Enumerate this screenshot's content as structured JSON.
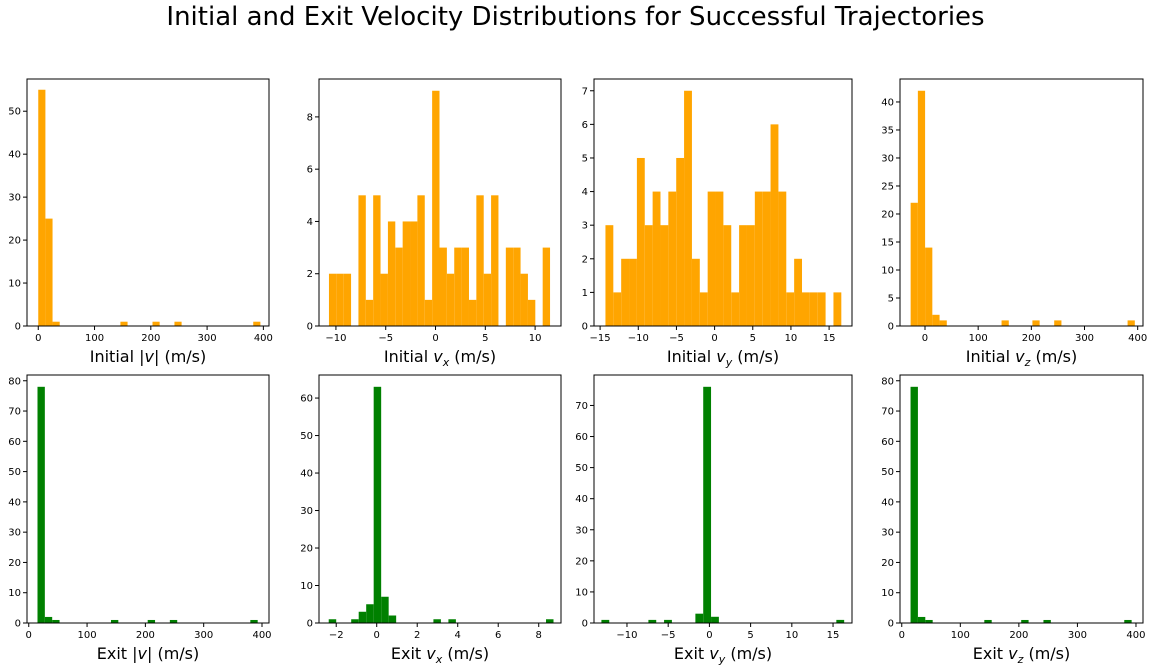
{
  "title": "Initial and Exit Velocity Distributions for Successful Trajectories",
  "colors": {
    "initial": "#ffa500",
    "exit": "#008000"
  },
  "chart_data": [
    {
      "type": "bar",
      "name": "initial-speed",
      "xlabel": {
        "pre": "Initial |",
        "var": "v",
        "sub": "",
        "post": "| (m/s)"
      },
      "xlim": [
        -20,
        410
      ],
      "ylim": [
        0,
        57.5
      ],
      "xticks": [
        0,
        100,
        200,
        300,
        400
      ],
      "yticks": [
        0,
        10,
        20,
        30,
        40,
        50
      ],
      "bin_width": 12.7,
      "color": "initial",
      "bins": [
        [
          0,
          55
        ],
        [
          12.7,
          25
        ],
        [
          25.4,
          1
        ],
        [
          146,
          1
        ],
        [
          203,
          1
        ],
        [
          242,
          1
        ],
        [
          382,
          1
        ]
      ]
    },
    {
      "type": "bar",
      "name": "initial-vx",
      "xlabel": {
        "pre": "Initial ",
        "var": "v",
        "sub": "x",
        "post": " (m/s)"
      },
      "xlim": [
        -11.7,
        12.6
      ],
      "ylim": [
        0,
        9.45
      ],
      "xticks": [
        -10,
        -5,
        0,
        5,
        10
      ],
      "yticks": [
        0,
        2,
        4,
        6,
        8
      ],
      "bin_width": 0.74,
      "color": "initial",
      "bins": [
        [
          -10.7,
          2
        ],
        [
          -9.96,
          2
        ],
        [
          -9.22,
          2
        ],
        [
          -7.74,
          5
        ],
        [
          -7.0,
          1
        ],
        [
          -6.26,
          5
        ],
        [
          -5.52,
          2
        ],
        [
          -4.78,
          4
        ],
        [
          -4.04,
          3
        ],
        [
          -3.3,
          4
        ],
        [
          -2.56,
          4
        ],
        [
          -1.82,
          5
        ],
        [
          -1.08,
          1
        ],
        [
          -0.34,
          9
        ],
        [
          0.4,
          3
        ],
        [
          1.14,
          2
        ],
        [
          1.88,
          3
        ],
        [
          2.62,
          3
        ],
        [
          3.36,
          1
        ],
        [
          4.1,
          5
        ],
        [
          4.84,
          2
        ],
        [
          5.58,
          5
        ],
        [
          6.32,
          0
        ],
        [
          7.06,
          3
        ],
        [
          7.8,
          3
        ],
        [
          8.54,
          2
        ],
        [
          9.28,
          1
        ],
        [
          10.76,
          3
        ]
      ]
    },
    {
      "type": "bar",
      "name": "initial-vy",
      "xlabel": {
        "pre": "Initial ",
        "var": "v",
        "sub": "y",
        "post": " (m/s)"
      },
      "xlim": [
        -15.8,
        18.0
      ],
      "ylim": [
        0,
        7.35
      ],
      "xticks": [
        -15,
        -10,
        -5,
        0,
        5,
        10,
        15
      ],
      "yticks": [
        0,
        1,
        2,
        3,
        4,
        5,
        6,
        7
      ],
      "bin_width": 1.03,
      "color": "initial",
      "bins": [
        [
          -14.3,
          3
        ],
        [
          -13.27,
          1
        ],
        [
          -12.24,
          2
        ],
        [
          -11.21,
          2
        ],
        [
          -10.18,
          5
        ],
        [
          -9.15,
          3
        ],
        [
          -8.12,
          4
        ],
        [
          -7.09,
          3
        ],
        [
          -6.06,
          4
        ],
        [
          -5.03,
          5
        ],
        [
          -4.0,
          7
        ],
        [
          -2.97,
          2
        ],
        [
          -1.94,
          1
        ],
        [
          -0.91,
          4
        ],
        [
          0.12,
          4
        ],
        [
          1.15,
          3
        ],
        [
          2.18,
          1
        ],
        [
          3.21,
          3
        ],
        [
          4.24,
          3
        ],
        [
          5.27,
          4
        ],
        [
          6.3,
          4
        ],
        [
          7.33,
          6
        ],
        [
          8.36,
          4
        ],
        [
          9.39,
          1
        ],
        [
          10.42,
          2
        ],
        [
          11.45,
          1
        ],
        [
          12.48,
          1
        ],
        [
          13.51,
          1
        ],
        [
          15.57,
          1
        ]
      ]
    },
    {
      "type": "bar",
      "name": "initial-vz",
      "xlabel": {
        "pre": "Initial ",
        "var": "v",
        "sub": "z",
        "post": " (m/s)"
      },
      "xlim": [
        -47,
        410
      ],
      "ylim": [
        0,
        44.1
      ],
      "xticks": [
        0,
        100,
        200,
        300,
        400
      ],
      "yticks": [
        0,
        5,
        10,
        15,
        20,
        25,
        30,
        35,
        40
      ],
      "bin_width": 13.6,
      "color": "initial",
      "bins": [
        [
          -27,
          22
        ],
        [
          -13.4,
          42
        ],
        [
          0.2,
          14
        ],
        [
          13.8,
          2
        ],
        [
          27.4,
          1
        ],
        [
          144,
          1
        ],
        [
          202,
          1
        ],
        [
          243,
          1
        ],
        [
          381,
          1
        ]
      ]
    },
    {
      "type": "bar",
      "name": "exit-speed",
      "xlabel": {
        "pre": "Exit |",
        "var": "v",
        "sub": "",
        "post": "| (m/s)"
      },
      "xlim": [
        -3,
        412
      ],
      "ylim": [
        0,
        81.9
      ],
      "xticks": [
        0,
        100,
        200,
        300,
        400
      ],
      "yticks": [
        0,
        10,
        20,
        30,
        40,
        50,
        60,
        70,
        80
      ],
      "bin_width": 12.6,
      "color": "exit",
      "bins": [
        [
          15,
          78
        ],
        [
          27.6,
          2
        ],
        [
          40.2,
          1
        ],
        [
          141,
          1
        ],
        [
          204,
          1
        ],
        [
          242,
          1
        ],
        [
          380,
          1
        ]
      ]
    },
    {
      "type": "bar",
      "name": "exit-vx",
      "xlabel": {
        "pre": "Exit ",
        "var": "v",
        "sub": "x",
        "post": " (m/s)"
      },
      "xlim": [
        -2.85,
        9.1
      ],
      "ylim": [
        0,
        66.15
      ],
      "xticks": [
        -2,
        0,
        2,
        4,
        6,
        8
      ],
      "yticks": [
        0,
        10,
        20,
        30,
        40,
        50,
        60
      ],
      "bin_width": 0.37,
      "color": "exit",
      "bins": [
        [
          -2.37,
          1
        ],
        [
          -1.26,
          1
        ],
        [
          -0.89,
          3
        ],
        [
          -0.52,
          5
        ],
        [
          -0.15,
          63
        ],
        [
          0.22,
          7
        ],
        [
          0.59,
          2
        ],
        [
          2.8,
          1
        ],
        [
          3.54,
          1
        ],
        [
          8.36,
          1
        ]
      ]
    },
    {
      "type": "bar",
      "name": "exit-vy",
      "xlabel": {
        "pre": "Exit ",
        "var": "v",
        "sub": "y",
        "post": " (m/s)"
      },
      "xlim": [
        -14.0,
        17.3
      ],
      "ylim": [
        0,
        79.8
      ],
      "xticks": [
        -10,
        -5,
        0,
        5,
        10,
        15
      ],
      "yticks": [
        0,
        10,
        20,
        30,
        40,
        50,
        60,
        70
      ],
      "bin_width": 0.95,
      "color": "exit",
      "bins": [
        [
          -13.1,
          1
        ],
        [
          -7.4,
          1
        ],
        [
          -5.5,
          1
        ],
        [
          -1.7,
          3
        ],
        [
          -0.75,
          76
        ],
        [
          0.2,
          2
        ],
        [
          15.4,
          1
        ]
      ]
    },
    {
      "type": "bar",
      "name": "exit-vz",
      "xlabel": {
        "pre": "Exit ",
        "var": "v",
        "sub": "z",
        "post": " (m/s)"
      },
      "xlim": [
        -3,
        412
      ],
      "ylim": [
        0,
        81.9
      ],
      "xticks": [
        0,
        100,
        200,
        300,
        400
      ],
      "yticks": [
        0,
        10,
        20,
        30,
        40,
        50,
        60,
        70,
        80
      ],
      "bin_width": 12.6,
      "color": "exit",
      "bins": [
        [
          15,
          78
        ],
        [
          27.6,
          2
        ],
        [
          40.2,
          1
        ],
        [
          141,
          1
        ],
        [
          204,
          1
        ],
        [
          242,
          1
        ],
        [
          380,
          1
        ]
      ]
    }
  ]
}
